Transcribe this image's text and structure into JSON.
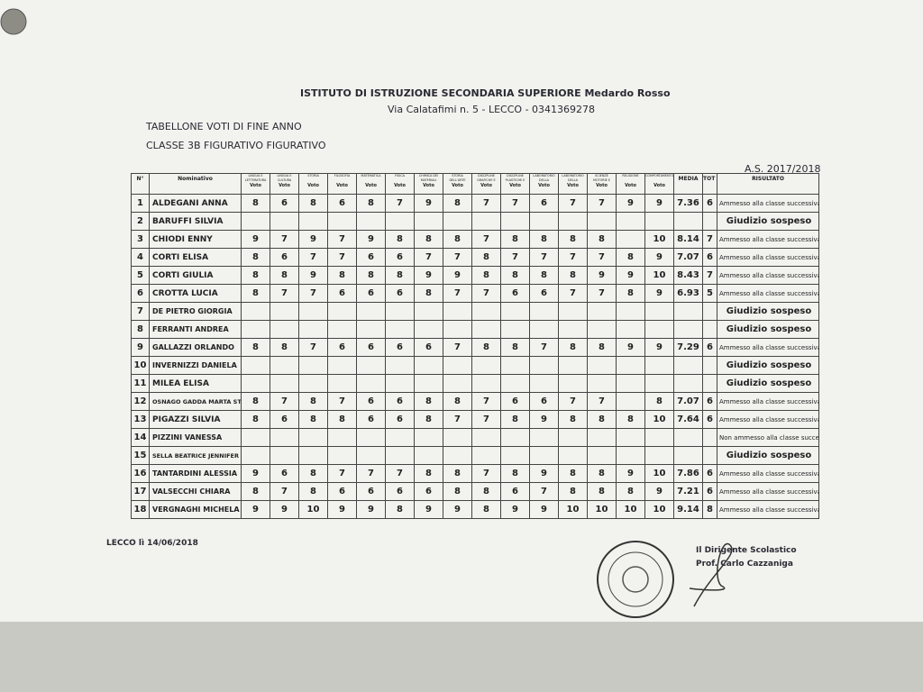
{
  "header": {
    "institute": "ISTITUTO DI ISTRUZIONE SECONDARIA SUPERIORE Medardo Rosso",
    "address": "Via Calatafimi n. 5 - LECCO - 0341369278",
    "title": "TABELLONE VOTI DI FINE ANNO",
    "class": "CLASSE 3B FIGURATIVO FIGURATIVO",
    "school_year": "A.S. 2017/2018"
  },
  "table": {
    "col_number": "N°",
    "col_name": "Nominativo",
    "subjects": [
      "LINGUA E LETTERATURA ITALIANA",
      "LINGUA E CULTURA STRANIERA",
      "STORIA",
      "FILOSOFIA",
      "MATEMATICA",
      "FISICA",
      "CHIMICA DEI MATERIALI",
      "STORIA DELL'ARTE",
      "DISCIPLINE GRAFICHE E PITTORICHE",
      "DISCIPLINE PLASTICHE E SCULTOREE",
      "LABORATORIO DELLA FIGURAZIONE",
      "LABORATORIO DELLA FIGURAZIONE",
      "SCIENZE MOTORIE E SPORTIVE",
      "RELIGIONE",
      "COMPORTAMENTO"
    ],
    "grade_label": "Voto",
    "col_media": "MEDIA",
    "col_credits": "TOT CR.",
    "col_result": "RISULTATO",
    "rows": [
      {
        "n": 1,
        "name": "ALDEGANI ANNA",
        "grades": [
          8,
          6,
          8,
          6,
          8,
          7,
          9,
          8,
          7,
          7,
          6,
          7,
          7,
          9,
          9
        ],
        "media": 7.36,
        "credits": 6,
        "result": "Ammesso alla classe successiva"
      },
      {
        "n": 2,
        "name": "BARUFFI SILVIA",
        "grades": [
          null,
          null,
          null,
          null,
          null,
          null,
          null,
          null,
          null,
          null,
          null,
          null,
          null,
          null,
          null
        ],
        "media": null,
        "credits": null,
        "result": "Giudizio sospeso"
      },
      {
        "n": 3,
        "name": "CHIODI ENNY",
        "grades": [
          9,
          7,
          9,
          7,
          9,
          8,
          8,
          8,
          7,
          8,
          8,
          8,
          8,
          null,
          10
        ],
        "media": 8.14,
        "credits": 7,
        "result": "Ammesso alla classe successiva"
      },
      {
        "n": 4,
        "name": "CORTI ELISA",
        "grades": [
          8,
          6,
          7,
          7,
          6,
          6,
          7,
          7,
          8,
          7,
          7,
          7,
          7,
          8,
          9
        ],
        "media": 7.07,
        "credits": 6,
        "result": "Ammesso alla classe successiva"
      },
      {
        "n": 5,
        "name": "CORTI GIULIA",
        "grades": [
          8,
          8,
          9,
          8,
          8,
          8,
          9,
          9,
          8,
          8,
          8,
          8,
          9,
          9,
          10
        ],
        "media": 8.43,
        "credits": 7,
        "result": "Ammesso alla classe successiva"
      },
      {
        "n": 6,
        "name": "CROTTA LUCIA",
        "grades": [
          8,
          7,
          7,
          6,
          6,
          6,
          8,
          7,
          7,
          6,
          6,
          7,
          7,
          8,
          9
        ],
        "media": 6.93,
        "credits": 5,
        "result": "Ammesso alla classe successiva"
      },
      {
        "n": 7,
        "name": "DE PIETRO GIORGIA",
        "grades": [
          null,
          null,
          null,
          null,
          null,
          null,
          null,
          null,
          null,
          null,
          null,
          null,
          null,
          null,
          null
        ],
        "media": null,
        "credits": null,
        "result": "Giudizio sospeso"
      },
      {
        "n": 8,
        "name": "FERRANTI ANDREA",
        "grades": [
          null,
          null,
          null,
          null,
          null,
          null,
          null,
          null,
          null,
          null,
          null,
          null,
          null,
          null,
          null
        ],
        "media": null,
        "credits": null,
        "result": "Giudizio sospeso"
      },
      {
        "n": 9,
        "name": "GALLAZZI ORLANDO",
        "grades": [
          8,
          8,
          7,
          6,
          6,
          6,
          6,
          7,
          8,
          8,
          7,
          8,
          8,
          9,
          9
        ],
        "media": 7.29,
        "credits": 6,
        "result": "Ammesso alla classe successiva"
      },
      {
        "n": 10,
        "name": "INVERNIZZI DANIELA",
        "grades": [
          null,
          null,
          null,
          null,
          null,
          null,
          null,
          null,
          null,
          null,
          null,
          null,
          null,
          null,
          null
        ],
        "media": null,
        "credits": null,
        "result": "Giudizio sospeso"
      },
      {
        "n": 11,
        "name": "MILEA ELISA",
        "grades": [
          null,
          null,
          null,
          null,
          null,
          null,
          null,
          null,
          null,
          null,
          null,
          null,
          null,
          null,
          null
        ],
        "media": null,
        "credits": null,
        "result": "Giudizio sospeso"
      },
      {
        "n": 12,
        "name": "OSNAGO GADDA MARTA STEFANIA",
        "grades": [
          8,
          7,
          8,
          7,
          6,
          6,
          8,
          8,
          7,
          6,
          6,
          7,
          7,
          null,
          8
        ],
        "media": 7.07,
        "credits": 6,
        "result": "Ammesso alla classe successiva"
      },
      {
        "n": 13,
        "name": "PIGAZZI SILVIA",
        "grades": [
          8,
          6,
          8,
          8,
          6,
          6,
          8,
          7,
          7,
          8,
          9,
          8,
          8,
          8,
          10
        ],
        "media": 7.64,
        "credits": 6,
        "result": "Ammesso alla classe successiva"
      },
      {
        "n": 14,
        "name": "PIZZINI VANESSA",
        "grades": [
          null,
          null,
          null,
          null,
          null,
          null,
          null,
          null,
          null,
          null,
          null,
          null,
          null,
          null,
          null
        ],
        "media": null,
        "credits": null,
        "result": "Non ammesso alla classe successiva"
      },
      {
        "n": 15,
        "name": "SELLA BEATRICE JENNIFER AL",
        "grades": [
          null,
          null,
          null,
          null,
          null,
          null,
          null,
          null,
          null,
          null,
          null,
          null,
          null,
          null,
          null
        ],
        "media": null,
        "credits": null,
        "result": "Giudizio sospeso"
      },
      {
        "n": 16,
        "name": "TANTARDINI ALESSIA",
        "grades": [
          9,
          6,
          8,
          7,
          7,
          7,
          8,
          8,
          7,
          8,
          9,
          8,
          8,
          9,
          10
        ],
        "media": 7.86,
        "credits": 6,
        "result": "Ammesso alla classe successiva"
      },
      {
        "n": 17,
        "name": "VALSECCHI CHIARA",
        "grades": [
          8,
          7,
          8,
          6,
          6,
          6,
          6,
          8,
          8,
          6,
          7,
          8,
          8,
          8,
          9
        ],
        "media": 7.21,
        "credits": 6,
        "result": "Ammesso alla classe successiva"
      },
      {
        "n": 18,
        "name": "VERGNAGHI MICHELA",
        "grades": [
          9,
          9,
          10,
          9,
          9,
          8,
          9,
          9,
          8,
          9,
          9,
          10,
          10,
          10,
          10
        ],
        "media": 9.14,
        "credits": 8,
        "result": "Ammesso alla classe successiva"
      }
    ]
  },
  "footer": {
    "place_date": "LECCO lì 14/06/2018",
    "signer_role": "Il Dirigente Scolastico",
    "signer_name": "Prof. Carlo Cazzaniga"
  }
}
